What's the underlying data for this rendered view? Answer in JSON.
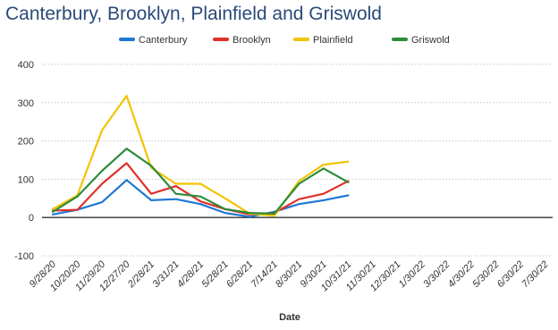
{
  "chart_data": {
    "type": "line",
    "title": "Canterbury, Brooklyn, Plainfield and Griswold",
    "xlabel": "Date",
    "ylabel": "",
    "ylim": [
      -100,
      400
    ],
    "yticks": [
      -100,
      0,
      100,
      200,
      300,
      400
    ],
    "grid": true,
    "legend_position": "top-center",
    "categories": [
      "9/28/20",
      "10/20/20",
      "11/29/20",
      "12/27/20",
      "2/28/21",
      "3/31/21",
      "4/28/21",
      "5/28/21",
      "6/28/21",
      "7/14/21",
      "8/30/21",
      "9/30/21",
      "10/31/21",
      "11/30/21",
      "12/30/21",
      "1/30/22",
      "3/30/22",
      "4/30/22",
      "5/30/22",
      "6/30/22",
      "7/30/22"
    ],
    "series": [
      {
        "name": "Canterbury",
        "color": "#1f77d4",
        "values": [
          8,
          20,
          40,
          98,
          45,
          48,
          35,
          12,
          2,
          15,
          35,
          45,
          58,
          null,
          null,
          null,
          null,
          null,
          null,
          null,
          null
        ]
      },
      {
        "name": "Brooklyn",
        "color": "#e0302a",
        "values": [
          18,
          20,
          88,
          142,
          62,
          82,
          42,
          22,
          8,
          12,
          48,
          62,
          95,
          null,
          null,
          null,
          null,
          null,
          null,
          null,
          null
        ]
      },
      {
        "name": "Plainfield",
        "color": "#f2c400",
        "values": [
          22,
          58,
          228,
          318,
          130,
          88,
          88,
          50,
          10,
          5,
          95,
          138,
          146,
          null,
          null,
          null,
          null,
          null,
          null,
          null,
          null
        ]
      },
      {
        "name": "Griswold",
        "color": "#2e8b3a",
        "values": [
          15,
          55,
          122,
          180,
          135,
          62,
          55,
          22,
          12,
          10,
          88,
          128,
          92,
          null,
          null,
          null,
          null,
          null,
          null,
          null,
          null
        ]
      }
    ]
  }
}
